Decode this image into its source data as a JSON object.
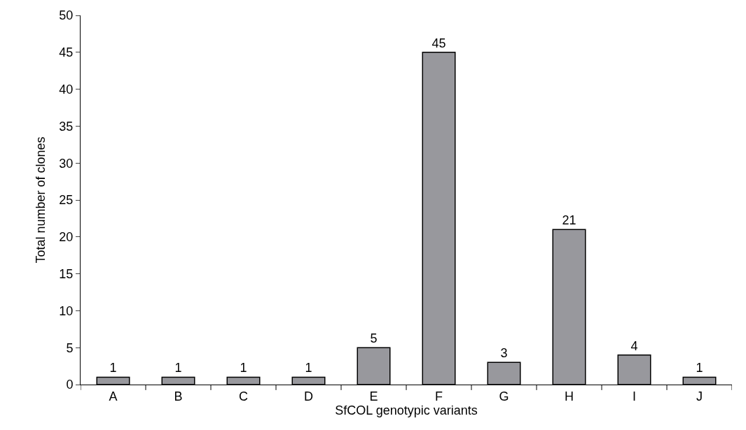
{
  "chart_data": {
    "type": "bar",
    "xlabel": "SfCOL genotypic variants",
    "ylabel": "Total number of clones",
    "categories": [
      "A",
      "B",
      "C",
      "D",
      "E",
      "F",
      "G",
      "H",
      "I",
      "J"
    ],
    "values": [
      1,
      1,
      1,
      1,
      5,
      45,
      3,
      21,
      4,
      1
    ],
    "color": "#98989d",
    "ylim": [
      0,
      50
    ],
    "yticks": [
      0,
      5,
      10,
      15,
      20,
      25,
      30,
      35,
      40,
      45,
      50
    ],
    "data_labels": true
  }
}
